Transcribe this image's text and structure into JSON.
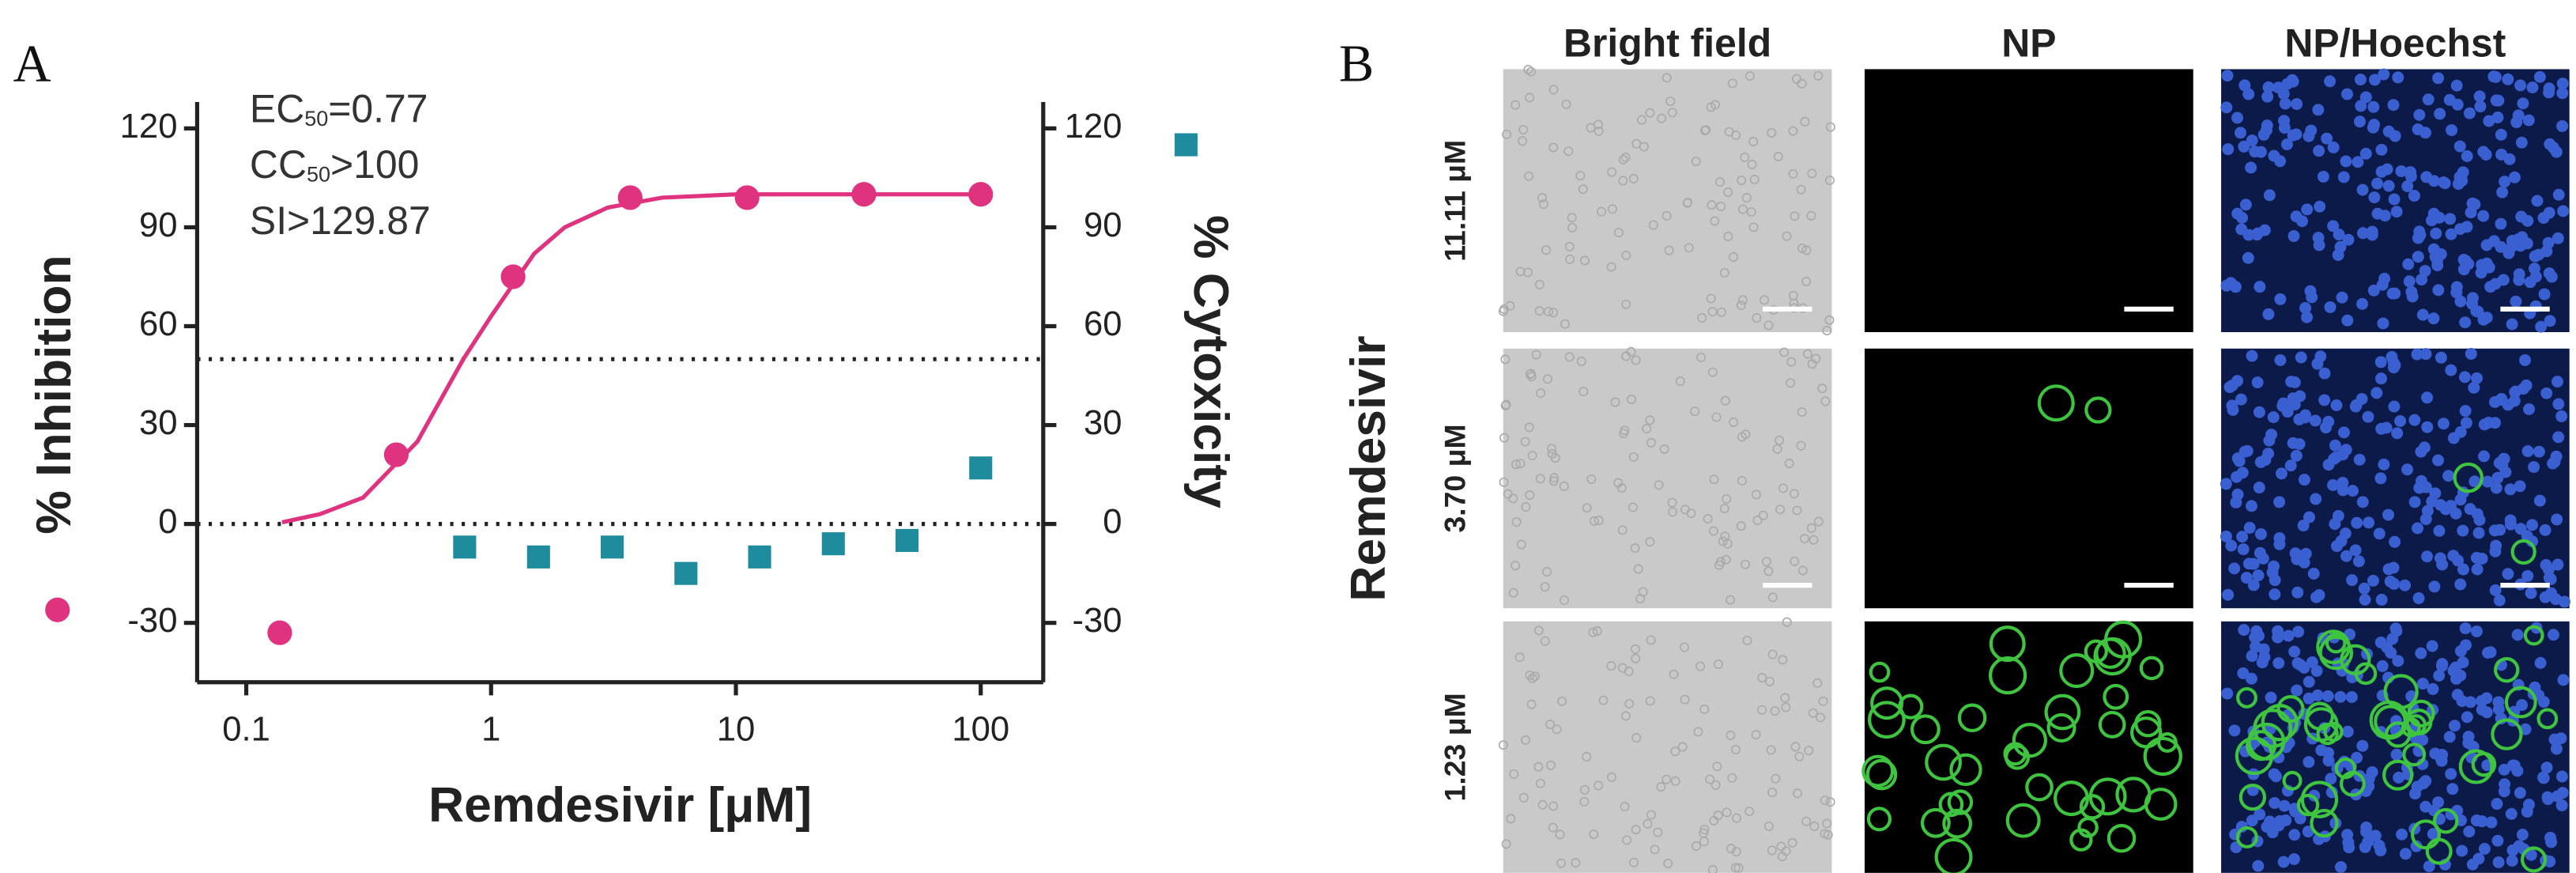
{
  "chart_data": {
    "type": "scatter",
    "panel_label": "A",
    "xlabel": "Remdesivir [μM]",
    "log_x": true,
    "xlim": [
      0.063,
      180
    ],
    "xticks": [
      0.1,
      1,
      10,
      100
    ],
    "ylim": [
      -48,
      128
    ],
    "yticks": [
      -30,
      0,
      30,
      60,
      90,
      120
    ],
    "y2lim": [
      -48,
      128
    ],
    "y2ticks": [
      -30,
      0,
      30,
      60,
      90,
      120
    ],
    "hlines": [
      50,
      0
    ],
    "annotations": [
      {
        "text": "EC",
        "sub": "50",
        "rest": "=0.77"
      },
      {
        "text": "CC",
        "sub": "50",
        "rest": ">100"
      },
      {
        "text": "SI>129.87"
      }
    ],
    "series": [
      {
        "name": "% Inhibition",
        "color": "#e0337f",
        "marker": "circle",
        "x": [
          0.137,
          0.41,
          1.23,
          3.7,
          11.11,
          33.33,
          100
        ],
        "values": [
          -33,
          21,
          75,
          99,
          99,
          100,
          100
        ]
      },
      {
        "name": "% Cytoxicity",
        "color": "#1e8c9c",
        "marker": "square",
        "axis": "y2",
        "x": [
          0.78,
          1.5625,
          3.125,
          6.25,
          12.5,
          25,
          50,
          100
        ],
        "values": [
          -7,
          -10,
          -7,
          -15,
          -10,
          -6,
          -5,
          17
        ]
      }
    ],
    "fit": {
      "color": "#e0337f",
      "x": [
        0.14,
        0.2,
        0.3,
        0.5,
        0.77,
        1,
        1.5,
        2,
        3,
        5,
        10,
        100
      ],
      "values": [
        0.5,
        3,
        8,
        25,
        50,
        63,
        82,
        90,
        96,
        99,
        100,
        100
      ]
    }
  },
  "panel_b": {
    "panel_label": "B",
    "group_label": "Remdesivir",
    "columns": [
      "Bright field",
      "NP",
      "NP/Hoechst"
    ],
    "rows": [
      "11.11 μM",
      "3.70 μM",
      "1.23 μM"
    ]
  }
}
